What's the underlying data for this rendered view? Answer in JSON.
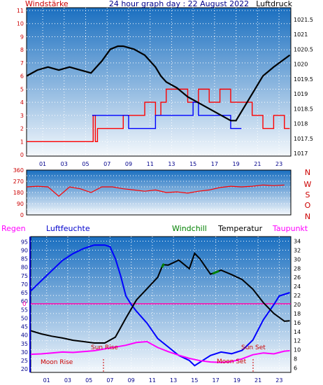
{
  "header": {
    "left_label": "Windstärke",
    "title": "24 hour graph day : 22 August 2022",
    "right_label": "Luftdruck"
  },
  "labels_bottom_panel": {
    "regen": "Regen",
    "luftfeuchte": "Luftfeuchte",
    "windchill": "Windchill",
    "temperatur": "Temperatur",
    "taupunkt": "Taupunkt",
    "sun_rise": "Sun Rise",
    "sun_set": "Sun Set",
    "moon_rise": "Moon Rise",
    "moon_set": "Moon Set"
  },
  "direction_letters": [
    "N",
    "W",
    "S",
    "O",
    "N"
  ],
  "colors": {
    "background": "#ffffff",
    "panel_top": "#1a6fc0",
    "panel_bottom": "#f4f8fc",
    "wind": "#ff0000",
    "gust": "#0000ff",
    "pressure": "#000000",
    "humidity": "#0000ff",
    "temperature": "#000000",
    "windchill": "#008000",
    "dewpoint": "#ff00ff",
    "rain_zero_line": "#ff00aa",
    "axis_text_left": "#cc0000",
    "axis_text_right": "#000000",
    "axis_text_blue": "#00008b"
  },
  "chart_data": [
    {
      "type": "line",
      "name": "wind-and-pressure",
      "x_ticks": [
        "01",
        "03",
        "05",
        "07",
        "09",
        "11",
        "13",
        "15",
        "17",
        "19",
        "21",
        "23"
      ],
      "xlim": [
        0,
        24.6
      ],
      "y_left_ticks": [
        "0",
        "1",
        "2",
        "3",
        "4",
        "5",
        "6",
        "7",
        "8",
        "9",
        "10",
        "11"
      ],
      "ylim_left": [
        0,
        11
      ],
      "y_right_ticks": [
        "1017",
        "1017.5",
        "1018",
        "1018.5",
        "1019",
        "1019.5",
        "1020",
        "1020.5",
        "1021",
        "1021.5"
      ],
      "ylim_right": [
        1017,
        1021.8
      ],
      "pressure": {
        "x": [
          0,
          1,
          2,
          3,
          4,
          5,
          6,
          7,
          7.8,
          8.5,
          9,
          10,
          11,
          12,
          12.5,
          13,
          14,
          15,
          16,
          17,
          18,
          19,
          19.5,
          20,
          21,
          22,
          23,
          24.5
        ],
        "values": [
          1019.6,
          1019.8,
          1019.9,
          1019.8,
          1019.9,
          1019.8,
          1019.7,
          1020.1,
          1020.5,
          1020.6,
          1020.6,
          1020.5,
          1020.3,
          1019.9,
          1019.6,
          1019.4,
          1019.2,
          1018.9,
          1018.7,
          1018.5,
          1018.3,
          1018.1,
          1018.1,
          1018.4,
          1019.0,
          1019.6,
          1019.9,
          1020.3
        ]
      },
      "wind": {
        "x": [
          0,
          0.5,
          6.1,
          6.2,
          6.4,
          6.6,
          8,
          9,
          10,
          11,
          12,
          12.5,
          13,
          14,
          15,
          16,
          16.5,
          17,
          18,
          19,
          20,
          21,
          22,
          23,
          24,
          24.5
        ],
        "values": [
          1,
          1,
          1,
          3,
          1,
          2,
          2,
          3,
          3,
          4,
          3,
          4,
          5,
          5,
          4,
          5,
          5,
          4,
          5,
          4,
          4,
          3,
          2,
          3,
          2,
          2
        ]
      },
      "gust": {
        "x": [
          6.1,
          6.15,
          9.5,
          10.5,
          11.5,
          12,
          13,
          14,
          15,
          15.5,
          16,
          17,
          18,
          19,
          20
        ],
        "values": [
          3,
          3,
          2,
          2,
          2,
          3,
          3,
          3,
          3,
          4,
          3,
          3,
          3,
          2,
          2
        ]
      }
    },
    {
      "type": "line",
      "name": "wind-direction",
      "y_ticks": [
        "0",
        "45",
        "90",
        "135",
        "180",
        "225",
        "270",
        "315",
        "360"
      ],
      "ylim": [
        0,
        360
      ],
      "x": [
        0,
        1,
        2,
        3,
        4,
        5,
        6,
        7,
        8,
        9,
        10,
        11,
        12,
        13,
        14,
        15,
        16,
        17,
        18,
        19,
        20,
        21,
        22,
        23,
        24
      ],
      "values": [
        225,
        230,
        225,
        150,
        225,
        210,
        180,
        225,
        225,
        210,
        200,
        190,
        200,
        180,
        185,
        175,
        190,
        200,
        220,
        230,
        225,
        230,
        240,
        235,
        240
      ]
    },
    {
      "type": "line",
      "name": "temperature-humidity",
      "y_left_ticks": [
        "20",
        "25",
        "30",
        "35",
        "40",
        "45",
        "50",
        "55",
        "60",
        "65",
        "70",
        "75",
        "80",
        "85",
        "90",
        "95"
      ],
      "ylim_left": [
        18,
        98
      ],
      "y_right_ticks": [
        "6",
        "8",
        "10",
        "12",
        "14",
        "16",
        "18",
        "20",
        "22",
        "24",
        "26",
        "28",
        "30",
        "32",
        "34"
      ],
      "ylim_right": [
        5,
        35
      ],
      "rain_zero_label": "0",
      "humidity": {
        "x": [
          0,
          1,
          2,
          3,
          4,
          5,
          6,
          7,
          7.5,
          8,
          8.5,
          9,
          9.5,
          10,
          11,
          12,
          13,
          14,
          15,
          15.5,
          16,
          17,
          18,
          19,
          20,
          21,
          22,
          23,
          23.5,
          24.5
        ],
        "values": [
          66,
          72,
          78,
          84,
          88,
          91,
          93,
          93,
          92,
          85,
          75,
          63,
          58,
          54,
          47,
          38,
          33,
          28,
          25,
          22,
          24,
          28,
          30,
          29,
          31,
          37,
          49,
          58,
          63,
          65
        ]
      },
      "temperature": {
        "x": [
          0,
          1,
          2,
          3,
          4,
          5,
          6,
          7,
          8,
          9,
          10,
          11,
          12,
          12.5,
          13,
          14,
          15,
          15.5,
          16,
          17,
          18,
          19,
          20,
          21,
          22,
          23,
          24,
          24.5
        ],
        "values": [
          14.2,
          13.5,
          13,
          12.6,
          12.1,
          11.8,
          11.5,
          11.5,
          12.8,
          17,
          21,
          23.5,
          26,
          28.8,
          28.7,
          29.8,
          27.9,
          31.3,
          30.1,
          26.7,
          27.6,
          26.6,
          25.5,
          23.4,
          20.4,
          18,
          16.3,
          16.4
        ]
      },
      "dewpoint": {
        "x": [
          0,
          1,
          2,
          3,
          4,
          5,
          6,
          7,
          8,
          9,
          10,
          11,
          12,
          13,
          14,
          15,
          16,
          17,
          18,
          19,
          20,
          21,
          22,
          23,
          24,
          24.5
        ],
        "values": [
          9,
          9.1,
          9.3,
          9.5,
          9.4,
          9.6,
          9.8,
          10.2,
          10.6,
          11,
          11.6,
          11.8,
          10.5,
          9.6,
          8.8,
          8.1,
          7.6,
          7.3,
          7.2,
          7.4,
          8,
          8.9,
          9.3,
          9.1,
          9.7,
          9.8
        ]
      },
      "windchill": {
        "x": [
          12.4,
          12.6,
          17.2,
          17.8
        ],
        "values": [
          28.2,
          29.0,
          26.8,
          27.4
        ]
      },
      "sun_rise_hour": 6.4,
      "sun_set_hour": 20.6
    }
  ]
}
